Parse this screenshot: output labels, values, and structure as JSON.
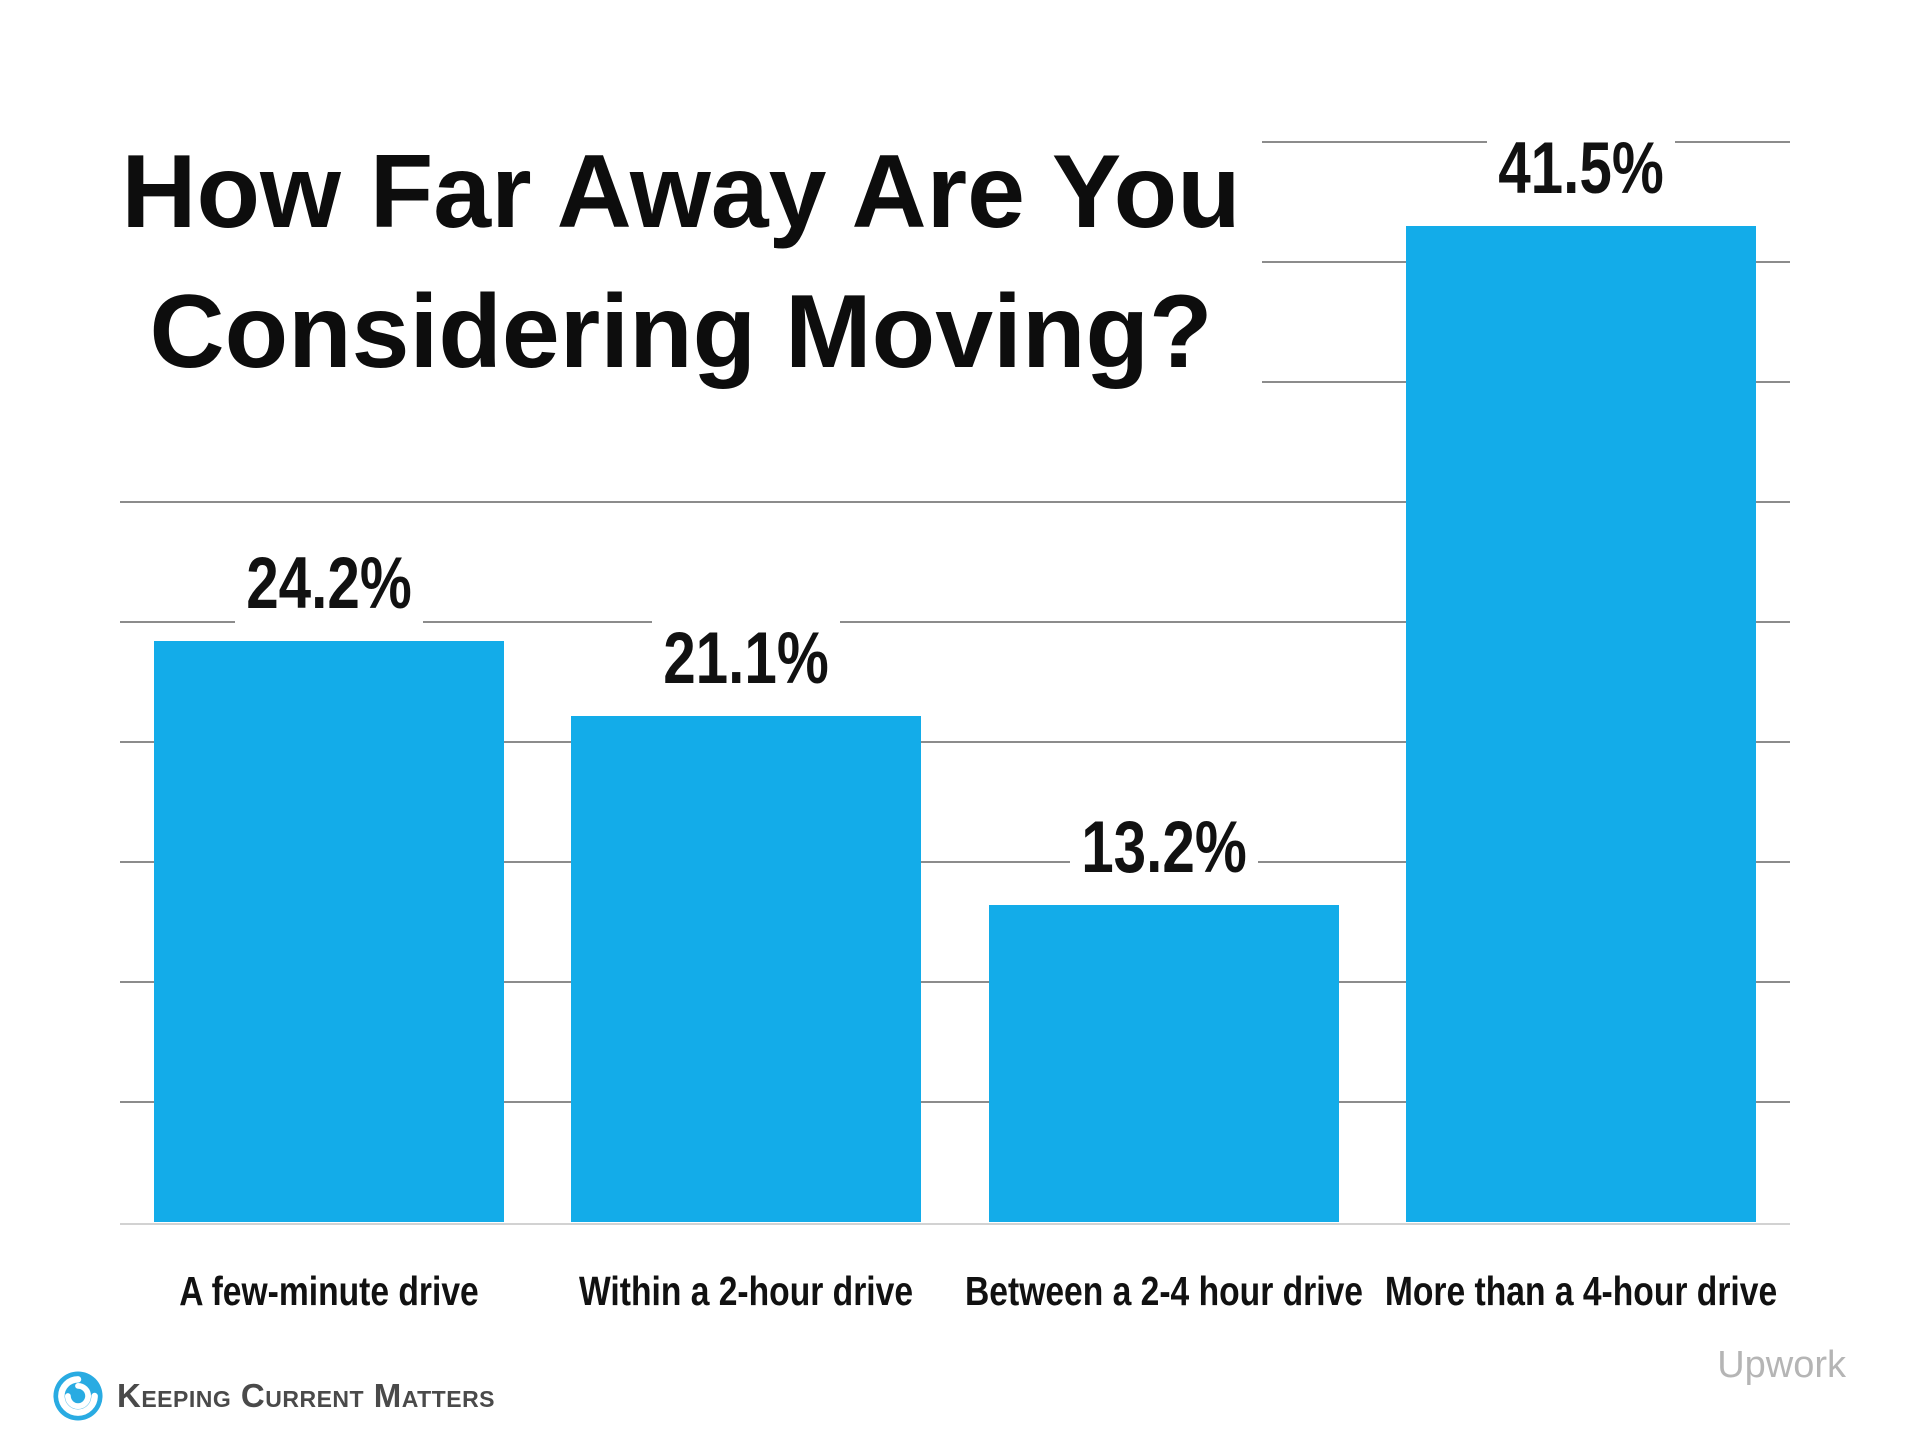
{
  "chart_data": {
    "type": "bar",
    "title": "How Far Away Are You Considering Moving?",
    "title_lines": [
      "How Far Away Are You",
      "Considering Moving?"
    ],
    "categories": [
      "A few-minute drive",
      "Within a 2-hour drive",
      "Between a 2-4 hour drive",
      "More than a 4-hour drive"
    ],
    "values": [
      24.2,
      21.1,
      13.2,
      41.5
    ],
    "value_labels": [
      "24.2%",
      "21.1%",
      "13.2%",
      "41.5%"
    ],
    "xlabel": "",
    "ylabel": "",
    "ylim": [
      0,
      47.5
    ],
    "y_gridlines_pct": [
      5,
      10,
      15,
      20,
      25,
      30,
      35,
      40,
      45
    ],
    "grid": "horizontal",
    "legend": "none",
    "bar_color": "#13ACE9",
    "gridline_color": "#8C8C8C",
    "axis_line_color": "#D2D2D2",
    "label_color": "#111111"
  },
  "footer": {
    "brand_text": "Keeping Current Matters",
    "brand_icon": "kcm-swirl-logo",
    "brand_icon_color": "#29ABE2",
    "brand_text_color": "#4a4a4a",
    "attribution": "Upwork",
    "attribution_color": "#B5B5B5"
  }
}
